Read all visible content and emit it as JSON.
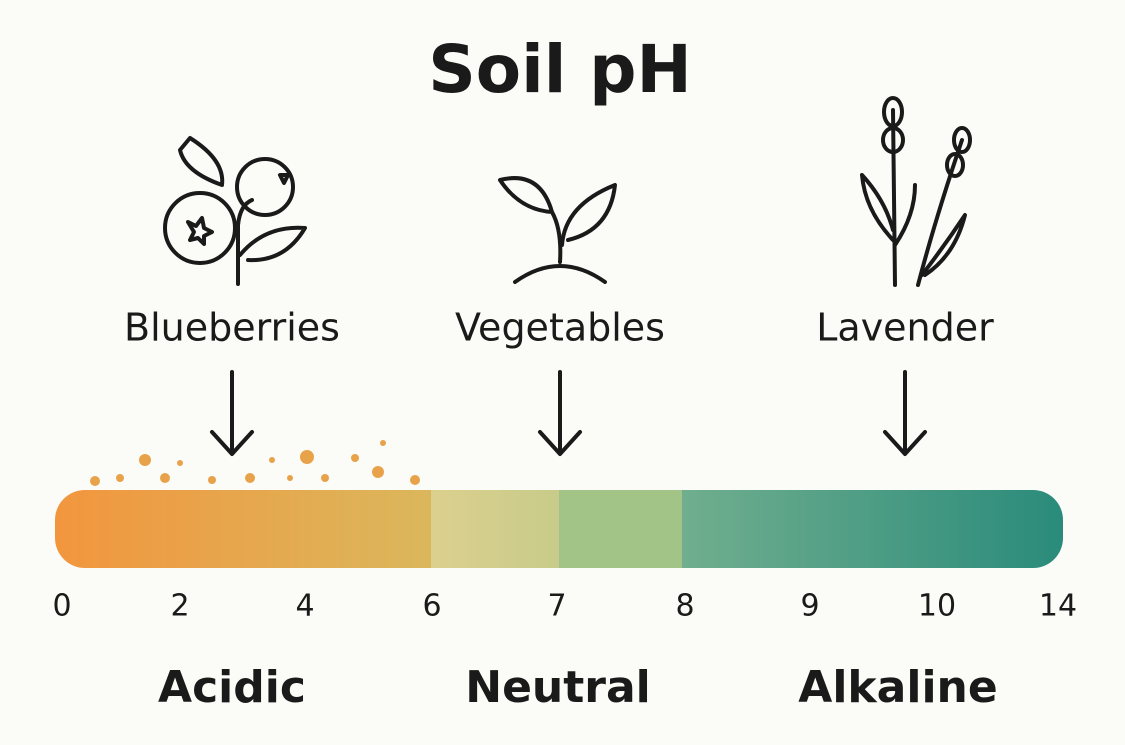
{
  "title": "Soil pH",
  "plants": [
    {
      "label": "Blueberries"
    },
    {
      "label": "Vegetables"
    },
    {
      "label": "Lavender"
    }
  ],
  "scale": {
    "ticks": [
      0,
      2,
      4,
      6,
      7,
      8,
      9,
      10,
      14
    ]
  },
  "zones": [
    {
      "label": "Acidic"
    },
    {
      "label": "Neutral"
    },
    {
      "label": "Alkaline"
    }
  ]
}
